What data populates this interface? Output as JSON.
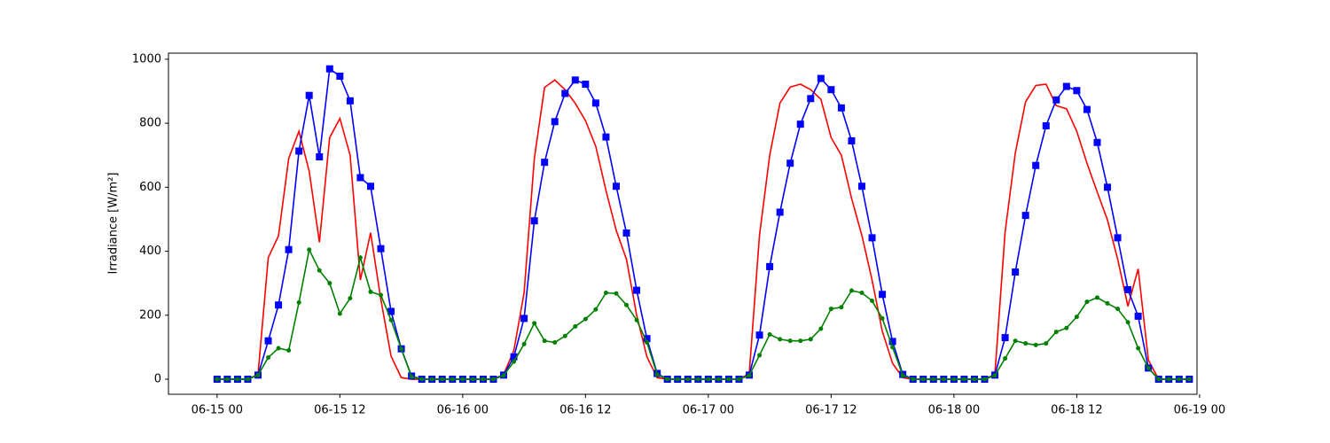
{
  "chart_data": {
    "type": "line",
    "y_label": "Irradiance [W/m²]",
    "x": [
      "06-15 00",
      "06-15 01",
      "06-15 02",
      "06-15 03",
      "06-15 04",
      "06-15 05",
      "06-15 06",
      "06-15 07",
      "06-15 08",
      "06-15 09",
      "06-15 10",
      "06-15 11",
      "06-15 12",
      "06-15 13",
      "06-15 14",
      "06-15 15",
      "06-15 16",
      "06-15 17",
      "06-15 18",
      "06-15 19",
      "06-15 20",
      "06-15 21",
      "06-15 22",
      "06-15 23",
      "06-16 00",
      "06-16 01",
      "06-16 02",
      "06-16 03",
      "06-16 04",
      "06-16 05",
      "06-16 06",
      "06-16 07",
      "06-16 08",
      "06-16 09",
      "06-16 10",
      "06-16 11",
      "06-16 12",
      "06-16 13",
      "06-16 14",
      "06-16 15",
      "06-16 16",
      "06-16 17",
      "06-16 18",
      "06-16 19",
      "06-16 20",
      "06-16 21",
      "06-16 22",
      "06-16 23",
      "06-17 00",
      "06-17 01",
      "06-17 02",
      "06-17 03",
      "06-17 04",
      "06-17 05",
      "06-17 06",
      "06-17 07",
      "06-17 08",
      "06-17 09",
      "06-17 10",
      "06-17 11",
      "06-17 12",
      "06-17 13",
      "06-17 14",
      "06-17 15",
      "06-17 16",
      "06-17 17",
      "06-17 18",
      "06-17 19",
      "06-17 20",
      "06-17 21",
      "06-17 22",
      "06-17 23",
      "06-18 00",
      "06-18 01",
      "06-18 02",
      "06-18 03",
      "06-18 04",
      "06-18 05",
      "06-18 06",
      "06-18 07",
      "06-18 08",
      "06-18 09",
      "06-18 10",
      "06-18 11",
      "06-18 12",
      "06-18 13",
      "06-18 14",
      "06-18 15",
      "06-18 16",
      "06-18 17",
      "06-18 18",
      "06-18 19",
      "06-18 20",
      "06-18 21",
      "06-18 22",
      "06-18 23"
    ],
    "series": [
      {
        "color": "#ff0000",
        "marker": "none",
        "values": [
          0,
          0,
          0,
          0,
          15,
          380,
          448,
          690,
          775,
          650,
          428,
          755,
          815,
          700,
          310,
          458,
          250,
          72,
          5,
          0,
          0,
          0,
          0,
          0,
          0,
          0,
          0,
          0,
          15,
          90,
          270,
          690,
          912,
          935,
          905,
          862,
          808,
          728,
          590,
          465,
          375,
          200,
          70,
          5,
          0,
          0,
          0,
          0,
          0,
          0,
          0,
          0,
          18,
          450,
          700,
          863,
          913,
          922,
          905,
          875,
          755,
          700,
          565,
          450,
          310,
          150,
          50,
          5,
          0,
          0,
          0,
          0,
          0,
          0,
          0,
          0,
          15,
          460,
          708,
          867,
          918,
          922,
          855,
          845,
          775,
          675,
          585,
          498,
          375,
          228,
          345,
          60,
          0,
          0,
          0,
          0
        ]
      },
      {
        "color": "#0000ff",
        "marker": "square",
        "values": [
          0,
          0,
          0,
          0,
          13,
          120,
          232,
          405,
          713,
          887,
          695,
          970,
          947,
          870,
          630,
          603,
          408,
          212,
          95,
          10,
          0,
          0,
          0,
          0,
          0,
          0,
          0,
          0,
          13,
          70,
          190,
          495,
          678,
          805,
          893,
          935,
          922,
          863,
          757,
          603,
          457,
          278,
          127,
          18,
          0,
          0,
          0,
          0,
          0,
          0,
          0,
          0,
          13,
          138,
          352,
          522,
          675,
          797,
          877,
          940,
          905,
          848,
          745,
          603,
          442,
          265,
          118,
          15,
          0,
          0,
          0,
          0,
          0,
          0,
          0,
          0,
          13,
          130,
          335,
          512,
          668,
          792,
          873,
          915,
          902,
          843,
          740,
          600,
          442,
          280,
          197,
          35,
          0,
          0,
          0,
          0
        ]
      },
      {
        "color": "#008000",
        "marker": "dot",
        "values": [
          0,
          0,
          0,
          0,
          13,
          68,
          97,
          90,
          240,
          405,
          340,
          300,
          205,
          253,
          380,
          273,
          263,
          185,
          95,
          8,
          0,
          0,
          0,
          0,
          0,
          0,
          0,
          0,
          12,
          55,
          110,
          175,
          120,
          115,
          135,
          165,
          188,
          218,
          270,
          268,
          232,
          185,
          115,
          15,
          0,
          0,
          0,
          0,
          0,
          0,
          0,
          0,
          12,
          75,
          140,
          125,
          120,
          120,
          125,
          158,
          220,
          225,
          277,
          270,
          245,
          190,
          100,
          12,
          0,
          0,
          0,
          0,
          0,
          0,
          0,
          0,
          12,
          65,
          120,
          112,
          107,
          112,
          148,
          160,
          195,
          242,
          255,
          237,
          220,
          178,
          97,
          35,
          0,
          0,
          0,
          0
        ]
      }
    ],
    "xlim": [
      "06-14 19:15",
      "06-18 23:45"
    ],
    "xticks": [
      "06-15 00",
      "06-15 12",
      "06-16 00",
      "06-16 12",
      "06-17 00",
      "06-17 12",
      "06-18 00",
      "06-18 12",
      "06-19 00"
    ],
    "ylim": [
      -47,
      1019
    ],
    "yticks": [
      0,
      200,
      400,
      600,
      800,
      1000
    ]
  }
}
